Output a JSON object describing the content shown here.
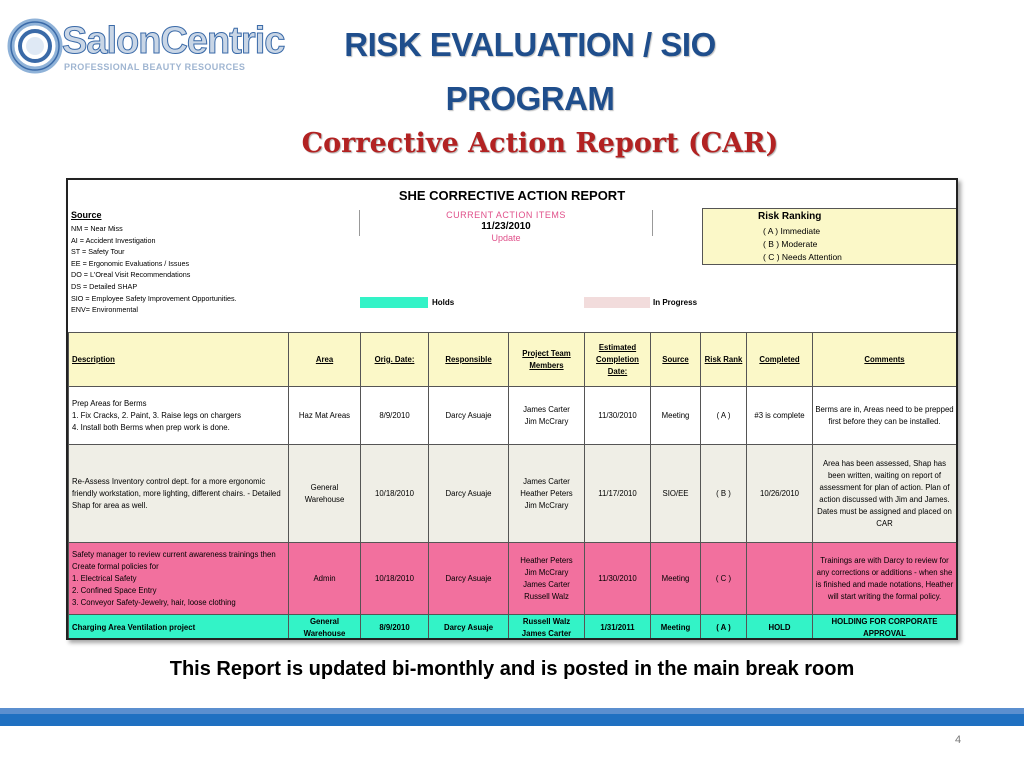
{
  "logo": {
    "text": "SalonCentric",
    "tagline": "PROFESSIONAL BEAUTY RESOURCES"
  },
  "slide": {
    "title_line1": "RISK  EVALUATION / SIO",
    "title_line2": "PROGRAM",
    "subtitle": "Corrective Action Report (CAR)",
    "footer_note": "This Report is updated bi-monthly and is posted in the main break room",
    "page_number": "4"
  },
  "report": {
    "title": "SHE CORRECTIVE ACTION REPORT",
    "source_heading": "Source",
    "source_items": [
      "NM = Near Miss",
      "AI = Accident Investigation",
      "ST = Safety Tour",
      "EE = Ergonomic Evaluations / Issues",
      "DO = L'Oreal Visit Recommendations",
      "DS = Detailed SHAP",
      "SIO = Employee Safety Improvement Opportunities.",
      "ENV= Environmental"
    ],
    "current": {
      "title": "CURRENT ACTION ITEMS",
      "date": "11/23/2010",
      "update": "Update"
    },
    "risk_ranking": {
      "title": "Risk Ranking",
      "items": [
        "( A ) Immediate",
        "( B ) Moderate",
        "( C ) Needs Attention"
      ]
    },
    "legend": {
      "holds": {
        "label": "Holds",
        "color": "#33f3c7"
      },
      "in_progress": {
        "label": "In Progress",
        "color": "#f2dcdc"
      }
    },
    "headers": {
      "description": "Description",
      "area": "Area",
      "orig_date": "Orig. Date:",
      "responsible": "Responsible",
      "project_team": "Project Team Members",
      "est_completion": "Estimated Completion Date:",
      "source": "Source",
      "risk_rank": "Risk Rank",
      "completed": "Completed",
      "comments": "Comments"
    },
    "rows": [
      {
        "description": [
          "Prep Areas for Berms",
          "1. Fix Cracks, 2. Paint, 3. Raise legs on chargers",
          "4. Install both Berms when prep work is done."
        ],
        "area": "Haz Mat Areas",
        "orig_date": "8/9/2010",
        "responsible": "Darcy Asuaje",
        "team": [
          "James Carter",
          "Jim McCrary"
        ],
        "est_completion": "11/30/2010",
        "source": "Meeting",
        "risk_rank": "( A )",
        "completed": "#3 is complete",
        "comments": "Berms are in, Areas need to be prepped first before they can be installed."
      },
      {
        "description": [
          "Re-Assess Inventory control dept. for a more ergonomic friendly workstation, more lighting, different chairs. - Detailed Shap for area as well."
        ],
        "area": "General Warehouse",
        "orig_date": "10/18/2010",
        "responsible": "Darcy Asuaje",
        "team": [
          "James Carter",
          "Heather Peters",
          "Jim McCrary"
        ],
        "est_completion": "11/17/2010",
        "source": "SIO/EE",
        "risk_rank": "( B )",
        "completed": "10/26/2010",
        "comments": "Area has been assessed, Shap has been written, waiting on report of assessment for plan of action. Plan of action discussed with Jim and James.  Dates must be assigned and placed on CAR"
      },
      {
        "description": [
          "Safety manager to review current awareness trainings then Create formal policies for",
          "1. Electrical Safety",
          "2. Confined Space Entry",
          "3. Conveyor Safety-Jewelry, hair, loose clothing"
        ],
        "area": "Admin",
        "orig_date": "10/18/2010",
        "responsible": "Darcy Asuaje",
        "team": [
          "Heather Peters",
          "Jim McCrary",
          "James Carter",
          "Russell Walz"
        ],
        "est_completion": "11/30/2010",
        "source": "Meeting",
        "risk_rank": "( C )",
        "completed": "",
        "comments": "Trainings are with Darcy to review for any corrections or additions - when she is finished and made notations, Heather will start writing the formal policy."
      },
      {
        "description": [
          "Charging Area Ventilation project"
        ],
        "area": "General Warehouse",
        "orig_date": "8/9/2010",
        "responsible": "Darcy Asuaje",
        "team": [
          "Russell Walz",
          "James Carter"
        ],
        "est_completion": "1/31/2011",
        "source": "Meeting",
        "risk_rank": "( A )",
        "completed": "HOLD",
        "comments": "HOLDING FOR CORPORATE APPROVAL"
      }
    ]
  }
}
